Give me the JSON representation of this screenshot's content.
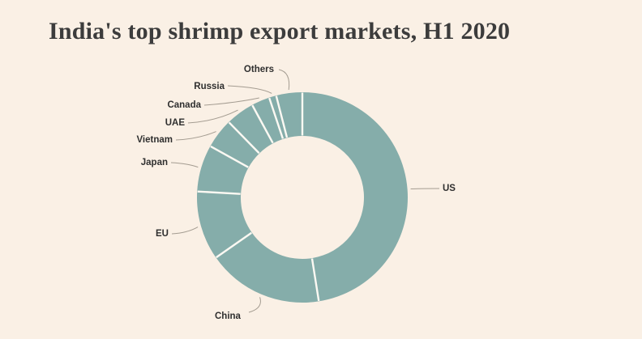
{
  "title": "India's top shrimp export markets, H1 2020",
  "colors": {
    "background": "#faf0e5",
    "slice_fill": "#85adaa",
    "slice_gap": "#fcf9f3",
    "title_text": "#3c3c3c",
    "label_text": "#2f2f2f",
    "leader_line": "#a49c91"
  },
  "chart_data": {
    "type": "pie",
    "subtype": "donut",
    "title": "India's top shrimp export markets, H1 2020",
    "legend_position": "none",
    "data_labels_shown": false,
    "label_style": "outside-labels-with-leader-lines",
    "start_angle_deg": 0,
    "direction": "clockwise",
    "categories": [
      "US",
      "China",
      "EU",
      "Japan",
      "Vietnam",
      "UAE",
      "Canada",
      "Russia",
      "Others"
    ],
    "values": [
      47.5,
      17.8,
      10.6,
      7.2,
      4.6,
      4.4,
      2.8,
      1.1,
      4.0
    ],
    "value_unit": "percent share (estimated from arc angles; chart shows no numeric labels)",
    "single_series_color": "#85adaa"
  }
}
